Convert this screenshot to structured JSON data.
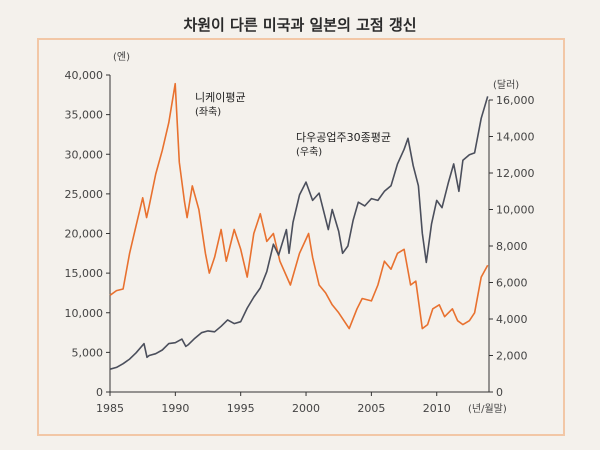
{
  "chart_data": {
    "type": "line",
    "title": "차원이 다른 미국과 일본의 고점 갱신",
    "xlabel": "(년/월말)",
    "ylabel_left": "(엔)",
    "ylabel_right": "(달러)",
    "xlim": [
      1985,
      2014
    ],
    "x_ticks": [
      "1985",
      "1990",
      "1995",
      "2000",
      "2005",
      "2010"
    ],
    "ylim_left": [
      0,
      40000
    ],
    "y_ticks_left": [
      "0",
      "5,000",
      "10,000",
      "15,000",
      "20,000",
      "25,000",
      "30,000",
      "35,000",
      "40,000"
    ],
    "ylim_right": [
      0,
      16000
    ],
    "y_ticks_right": [
      "0",
      "2,000",
      "4,000",
      "6,000",
      "8,000",
      "10,000",
      "12,000",
      "14,000",
      "16,000"
    ],
    "series": [
      {
        "name": "니케이평균",
        "axis_note": "(좌축)",
        "axis": "left",
        "color": "#e8712f",
        "points": [
          [
            1985.0,
            12200
          ],
          [
            1985.5,
            12800
          ],
          [
            1986.0,
            13000
          ],
          [
            1986.5,
            17500
          ],
          [
            1987.0,
            21000
          ],
          [
            1987.5,
            24500
          ],
          [
            1987.8,
            22000
          ],
          [
            1988.0,
            23500
          ],
          [
            1988.5,
            27500
          ],
          [
            1989.0,
            30500
          ],
          [
            1989.5,
            34000
          ],
          [
            1989.99,
            38900
          ],
          [
            1990.3,
            29000
          ],
          [
            1990.7,
            24000
          ],
          [
            1990.9,
            22000
          ],
          [
            1991.3,
            26000
          ],
          [
            1991.8,
            23000
          ],
          [
            1992.3,
            17500
          ],
          [
            1992.6,
            15000
          ],
          [
            1993.0,
            17000
          ],
          [
            1993.5,
            20500
          ],
          [
            1993.9,
            16500
          ],
          [
            1994.5,
            20500
          ],
          [
            1995.0,
            18000
          ],
          [
            1995.5,
            14500
          ],
          [
            1996.0,
            20000
          ],
          [
            1996.5,
            22500
          ],
          [
            1997.0,
            19000
          ],
          [
            1997.5,
            20000
          ],
          [
            1998.0,
            16500
          ],
          [
            1998.8,
            13500
          ],
          [
            1999.5,
            17500
          ],
          [
            2000.2,
            20000
          ],
          [
            2000.5,
            17000
          ],
          [
            2001.0,
            13500
          ],
          [
            2001.5,
            12500
          ],
          [
            2002.0,
            11000
          ],
          [
            2002.5,
            10000
          ],
          [
            2003.3,
            8000
          ],
          [
            2003.9,
            10500
          ],
          [
            2004.3,
            11800
          ],
          [
            2005.0,
            11500
          ],
          [
            2005.5,
            13500
          ],
          [
            2006.0,
            16500
          ],
          [
            2006.5,
            15500
          ],
          [
            2007.0,
            17500
          ],
          [
            2007.5,
            18000
          ],
          [
            2008.0,
            13500
          ],
          [
            2008.4,
            14000
          ],
          [
            2008.9,
            8000
          ],
          [
            2009.3,
            8500
          ],
          [
            2009.7,
            10500
          ],
          [
            2010.2,
            11000
          ],
          [
            2010.6,
            9500
          ],
          [
            2011.2,
            10500
          ],
          [
            2011.6,
            9000
          ],
          [
            2012.0,
            8500
          ],
          [
            2012.5,
            9000
          ],
          [
            2012.9,
            10000
          ],
          [
            2013.4,
            14500
          ],
          [
            2013.9,
            16000
          ]
        ]
      },
      {
        "name": "다우공업주30종평균",
        "axis_note": "(우축)",
        "axis": "right",
        "color": "#4b4f5c",
        "points": [
          [
            1985.0,
            1250
          ],
          [
            1985.5,
            1350
          ],
          [
            1986.0,
            1550
          ],
          [
            1986.5,
            1800
          ],
          [
            1987.0,
            2150
          ],
          [
            1987.6,
            2650
          ],
          [
            1987.83,
            1900
          ],
          [
            1988.0,
            2000
          ],
          [
            1988.5,
            2100
          ],
          [
            1989.0,
            2300
          ],
          [
            1989.5,
            2650
          ],
          [
            1990.0,
            2700
          ],
          [
            1990.5,
            2900
          ],
          [
            1990.8,
            2500
          ],
          [
            1991.0,
            2600
          ],
          [
            1991.5,
            2950
          ],
          [
            1992.0,
            3250
          ],
          [
            1992.5,
            3350
          ],
          [
            1993.0,
            3300
          ],
          [
            1993.5,
            3600
          ],
          [
            1994.0,
            3950
          ],
          [
            1994.5,
            3750
          ],
          [
            1995.0,
            3850
          ],
          [
            1995.5,
            4600
          ],
          [
            1996.0,
            5200
          ],
          [
            1996.5,
            5700
          ],
          [
            1997.0,
            6600
          ],
          [
            1997.5,
            8100
          ],
          [
            1997.9,
            7500
          ],
          [
            1998.5,
            8900
          ],
          [
            1998.7,
            7600
          ],
          [
            1999.0,
            9300
          ],
          [
            1999.5,
            10800
          ],
          [
            2000.0,
            11500
          ],
          [
            2000.5,
            10500
          ],
          [
            2001.0,
            10900
          ],
          [
            2001.7,
            8900
          ],
          [
            2002.0,
            10000
          ],
          [
            2002.5,
            8800
          ],
          [
            2002.8,
            7600
          ],
          [
            2003.2,
            8000
          ],
          [
            2003.6,
            9400
          ],
          [
            2004.0,
            10400
          ],
          [
            2004.5,
            10200
          ],
          [
            2005.0,
            10600
          ],
          [
            2005.5,
            10500
          ],
          [
            2006.0,
            11000
          ],
          [
            2006.5,
            11300
          ],
          [
            2007.0,
            12500
          ],
          [
            2007.5,
            13300
          ],
          [
            2007.8,
            13900
          ],
          [
            2008.2,
            12400
          ],
          [
            2008.6,
            11300
          ],
          [
            2008.9,
            8700
          ],
          [
            2009.2,
            7100
          ],
          [
            2009.6,
            9200
          ],
          [
            2010.0,
            10500
          ],
          [
            2010.4,
            10100
          ],
          [
            2010.9,
            11500
          ],
          [
            2011.3,
            12500
          ],
          [
            2011.7,
            11000
          ],
          [
            2012.0,
            12700
          ],
          [
            2012.5,
            13000
          ],
          [
            2012.9,
            13100
          ],
          [
            2013.4,
            15000
          ],
          [
            2013.9,
            16200
          ]
        ]
      }
    ]
  }
}
